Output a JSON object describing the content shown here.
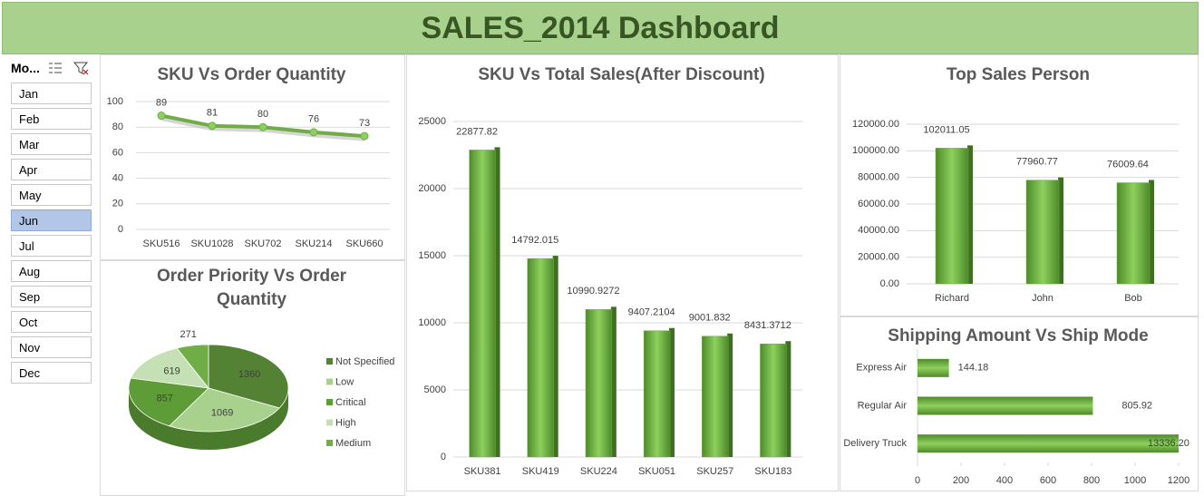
{
  "header": {
    "title": "SALES_2014 Dashboard"
  },
  "slicer": {
    "title": "Mo...",
    "items": [
      "Jan",
      "Feb",
      "Mar",
      "Apr",
      "May",
      "Jun",
      "Jul",
      "Aug",
      "Sep",
      "Oct",
      "Nov",
      "Dec"
    ],
    "selected": "Jun"
  },
  "chart_data": [
    {
      "type": "line",
      "title": "SKU Vs Order Quantity",
      "categories": [
        "SKU516",
        "SKU1028",
        "SKU702",
        "SKU214",
        "SKU660"
      ],
      "values": [
        89,
        81,
        80,
        76,
        73
      ],
      "color": "#70ad47",
      "ylim": [
        0,
        100
      ],
      "yticks": [
        0,
        20,
        40,
        60,
        80,
        100
      ],
      "grid": true
    },
    {
      "type": "pie",
      "title": "Order Priority Vs Order Quantity",
      "categories": [
        "Not Specified",
        "Low",
        "Critical",
        "High",
        "Medium"
      ],
      "values": [
        1360,
        1069,
        857,
        619,
        271
      ],
      "colors": [
        "#548235",
        "#a9d18e",
        "#5e9c38",
        "#c5e0b4",
        "#70ad47"
      ],
      "legend": "right"
    },
    {
      "type": "bar",
      "title": "SKU Vs Total Sales(After Discount)",
      "categories": [
        "SKU381",
        "SKU419",
        "SKU224",
        "SKU051",
        "SKU257",
        "SKU183"
      ],
      "values": [
        22877.82,
        14792.015,
        10990.9272,
        9407.2104,
        9001.832,
        8431.3712
      ],
      "color": "#70ad47",
      "ylim": [
        0,
        25000
      ],
      "yticks": [
        0,
        5000,
        10000,
        15000,
        20000,
        25000
      ],
      "grid": true
    },
    {
      "type": "bar",
      "title": "Top Sales Person",
      "categories": [
        "Richard",
        "John",
        "Bob"
      ],
      "values": [
        102011.05,
        77960.77,
        76009.64
      ],
      "color": "#70ad47",
      "ylim": [
        0,
        120000
      ],
      "yticks": [
        {
          "value": 0,
          "label": "0.00"
        },
        {
          "value": 20000,
          "label": "20000.00"
        },
        {
          "value": 40000,
          "label": "40000.00"
        },
        {
          "value": 60000,
          "label": "60000.00"
        },
        {
          "value": 80000,
          "label": "80000.00"
        },
        {
          "value": 100000,
          "label": "100000.00"
        },
        {
          "value": 120000,
          "label": "120000.00"
        }
      ],
      "grid": true
    },
    {
      "type": "hbar",
      "title": "Shipping Amount Vs Ship Mode",
      "categories": [
        "Express Air",
        "Regular Air",
        "Delivery Truck"
      ],
      "values": [
        144.18,
        805.92,
        13336.2
      ],
      "value_labels": [
        "144.18",
        "805.92",
        "13336.20"
      ],
      "color": "#70ad47",
      "xlim": [
        0,
        1200
      ],
      "xticks": [
        0,
        200,
        400,
        600,
        800,
        1000,
        1200
      ],
      "grid": false
    }
  ]
}
